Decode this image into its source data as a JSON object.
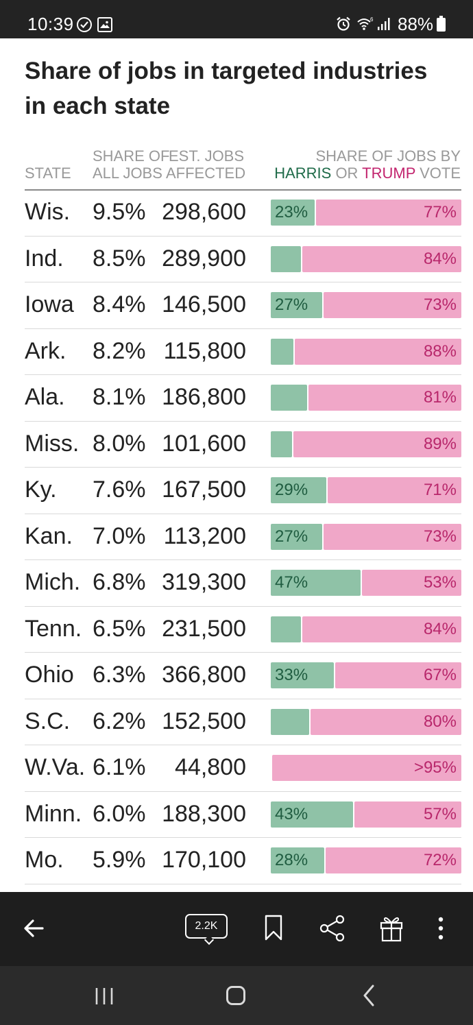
{
  "status_bar": {
    "time": "10:39",
    "battery": "88%",
    "icons": [
      "check-circle-icon",
      "gallery-icon",
      "alarm-icon",
      "wifi-icon",
      "signal-icon",
      "battery-icon"
    ]
  },
  "colors": {
    "harris": "#8fc2a7",
    "harris_text": "#1f6b49",
    "trump": "#f0a7c8",
    "trump_text": "#c2246e"
  },
  "chart_data": {
    "type": "table",
    "title": "Share of jobs in targeted industries in each state",
    "columns": {
      "state": "STATE",
      "share_line1": "SHARE OF",
      "share_line2": "ALL JOBS",
      "jobs_line1": "EST. JOBS",
      "jobs_line2": "AFFECTED",
      "vote_line1": "SHARE OF JOBS BY",
      "vote_harris": "HARRIS",
      "vote_or": " OR ",
      "vote_trump": "TRUMP",
      "vote_end": " VOTE"
    },
    "rows": [
      {
        "state": "Wis.",
        "share": "9.5%",
        "jobs": "298,600",
        "harris": 23,
        "trump": 77,
        "harris_label": "23%",
        "trump_label": "77%"
      },
      {
        "state": "Ind.",
        "share": "8.5%",
        "jobs": "289,900",
        "harris": 16,
        "trump": 84,
        "harris_label": "",
        "trump_label": "84%"
      },
      {
        "state": "Iowa",
        "share": "8.4%",
        "jobs": "146,500",
        "harris": 27,
        "trump": 73,
        "harris_label": "27%",
        "trump_label": "73%"
      },
      {
        "state": "Ark.",
        "share": "8.2%",
        "jobs": "115,800",
        "harris": 12,
        "trump": 88,
        "harris_label": "",
        "trump_label": "88%"
      },
      {
        "state": "Ala.",
        "share": "8.1%",
        "jobs": "186,800",
        "harris": 19,
        "trump": 81,
        "harris_label": "",
        "trump_label": "81%"
      },
      {
        "state": "Miss.",
        "share": "8.0%",
        "jobs": "101,600",
        "harris": 11,
        "trump": 89,
        "harris_label": "",
        "trump_label": "89%"
      },
      {
        "state": "Ky.",
        "share": "7.6%",
        "jobs": "167,500",
        "harris": 29,
        "trump": 71,
        "harris_label": "29%",
        "trump_label": "71%"
      },
      {
        "state": "Kan.",
        "share": "7.0%",
        "jobs": "113,200",
        "harris": 27,
        "trump": 73,
        "harris_label": "27%",
        "trump_label": "73%"
      },
      {
        "state": "Mich.",
        "share": "6.8%",
        "jobs": "319,300",
        "harris": 47,
        "trump": 53,
        "harris_label": "47%",
        "trump_label": "53%"
      },
      {
        "state": "Tenn.",
        "share": "6.5%",
        "jobs": "231,500",
        "harris": 16,
        "trump": 84,
        "harris_label": "",
        "trump_label": "84%"
      },
      {
        "state": "Ohio",
        "share": "6.3%",
        "jobs": "366,800",
        "harris": 33,
        "trump": 67,
        "harris_label": "33%",
        "trump_label": "67%"
      },
      {
        "state": "S.C.",
        "share": "6.2%",
        "jobs": "152,500",
        "harris": 20,
        "trump": 80,
        "harris_label": "",
        "trump_label": "80%"
      },
      {
        "state": "W.Va.",
        "share": "6.1%",
        "jobs": "44,800",
        "harris": 0,
        "trump": 100,
        "harris_label": "",
        "trump_label": ">95%"
      },
      {
        "state": "Minn.",
        "share": "6.0%",
        "jobs": "188,300",
        "harris": 43,
        "trump": 57,
        "harris_label": "43%",
        "trump_label": "57%"
      },
      {
        "state": "Mo.",
        "share": "5.9%",
        "jobs": "170,100",
        "harris": 28,
        "trump": 72,
        "harris_label": "28%",
        "trump_label": "72%"
      }
    ]
  },
  "toolbar": {
    "comments_count": "2.2K",
    "icons": [
      "back-arrow-icon",
      "comment-bubble-icon",
      "bookmark-icon",
      "share-icon",
      "gift-icon",
      "more-vertical-icon"
    ]
  },
  "navbar": {
    "icons": [
      "recent-apps-icon",
      "home-icon",
      "back-chevron-icon"
    ]
  }
}
